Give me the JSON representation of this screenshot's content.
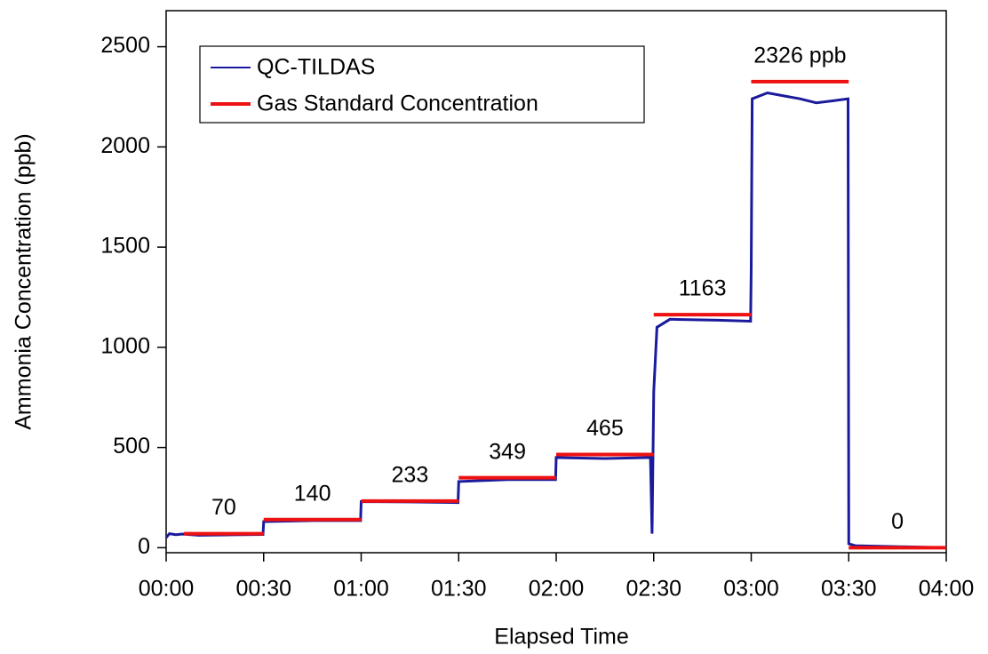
{
  "chart_data": {
    "type": "line",
    "xlabel": "Elapsed Time",
    "ylabel": "Ammonia Concentration  (ppb)",
    "xlim": [
      0,
      240
    ],
    "xticks": [
      {
        "value": 0,
        "label": "00:00"
      },
      {
        "value": 30,
        "label": "00:30"
      },
      {
        "value": 60,
        "label": "01:00"
      },
      {
        "value": 90,
        "label": "01:30"
      },
      {
        "value": 120,
        "label": "02:00"
      },
      {
        "value": 150,
        "label": "02:30"
      },
      {
        "value": 180,
        "label": "03:00"
      },
      {
        "value": 210,
        "label": "03:30"
      },
      {
        "value": 240,
        "label": "04:00"
      }
    ],
    "ylim": [
      -25,
      2680
    ],
    "yticks": [
      0,
      500,
      1000,
      1500,
      2000,
      2500
    ],
    "legend": "upper left",
    "series": [
      {
        "name": "QC-TILDAS",
        "color": "#1a1a9c",
        "x": [
          0,
          1,
          3,
          5,
          10,
          20,
          29.8,
          30,
          45,
          59.8,
          60,
          75,
          89.8,
          90,
          105,
          119.8,
          120,
          135,
          149,
          149.5,
          150,
          151,
          155,
          170,
          179.8,
          180,
          180.3,
          185,
          195,
          200,
          205,
          209.8,
          210,
          212,
          240
        ],
        "values": [
          50,
          70,
          65,
          68,
          62,
          64,
          66,
          130,
          135,
          135,
          230,
          228,
          225,
          330,
          340,
          340,
          450,
          445,
          450,
          70,
          780,
          1100,
          1140,
          1135,
          1130,
          1400,
          2240,
          2270,
          2240,
          2220,
          2230,
          2240,
          20,
          10,
          0
        ]
      }
    ],
    "levels": {
      "name": "Gas Standard Concentration",
      "color": "#ee1111",
      "starts": [
        5.5,
        30,
        60,
        90,
        120,
        150,
        180,
        210
      ],
      "ends": [
        30,
        60,
        90,
        120,
        150,
        180,
        210,
        240
      ],
      "values": [
        70,
        140,
        233,
        349,
        465,
        1163,
        2326,
        0
      ],
      "value_labels": [
        "70",
        "140",
        "233",
        "349",
        "465",
        "1163",
        "2326 ppb",
        "0"
      ]
    }
  }
}
